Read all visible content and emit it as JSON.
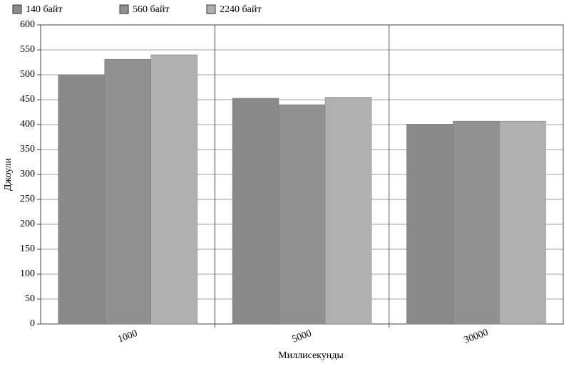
{
  "chart_data": {
    "type": "bar",
    "x_label": "Миллисекунды",
    "y_label": "Джоули",
    "categories": [
      "1000",
      "5000",
      "30000"
    ],
    "series": [
      {
        "name": "140 байт",
        "color": "#8a8a8a",
        "values": [
          500,
          453,
          401
        ]
      },
      {
        "name": "560 байт",
        "color": "#919191",
        "values": [
          531,
          440,
          407
        ]
      },
      {
        "name": "2240 байт",
        "color": "#b0b0b0",
        "values": [
          540,
          455,
          407
        ]
      }
    ],
    "ylim": [
      0,
      600
    ],
    "yticks": [
      0,
      50,
      100,
      150,
      200,
      250,
      300,
      350,
      400,
      450,
      500,
      550,
      600
    ],
    "grid": true,
    "legend": "top-left"
  }
}
